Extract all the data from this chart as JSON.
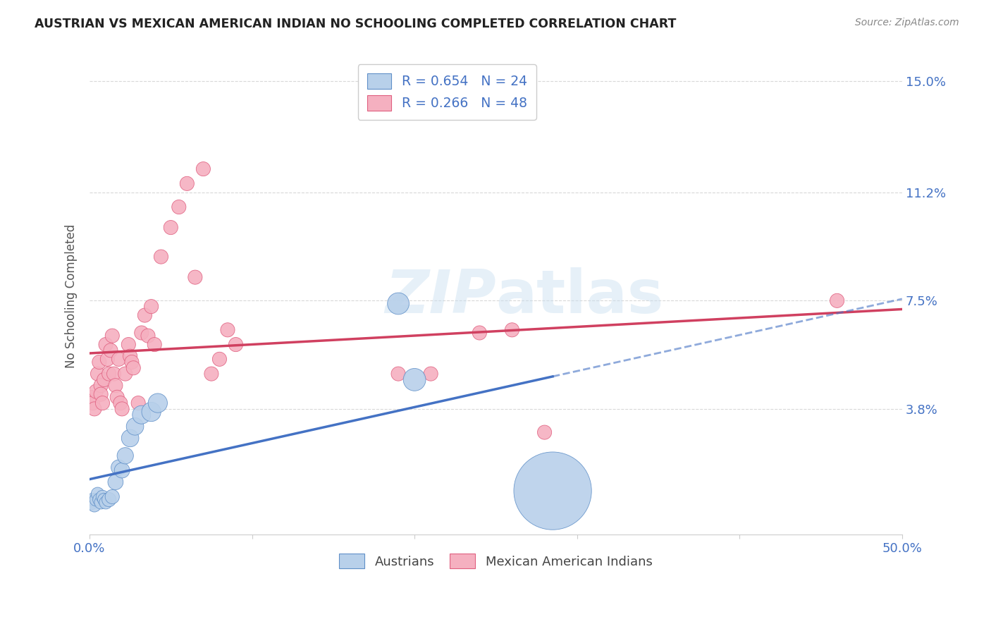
{
  "title": "AUSTRIAN VS MEXICAN AMERICAN INDIAN NO SCHOOLING COMPLETED CORRELATION CHART",
  "source": "Source: ZipAtlas.com",
  "ylabel": "No Schooling Completed",
  "xlim": [
    0.0,
    0.5
  ],
  "ylim": [
    -0.005,
    0.158
  ],
  "yticks": [
    0.038,
    0.075,
    0.112,
    0.15
  ],
  "ytick_labels": [
    "3.8%",
    "7.5%",
    "11.2%",
    "15.0%"
  ],
  "xticks": [
    0.0,
    0.1,
    0.2,
    0.3,
    0.4,
    0.5
  ],
  "xtick_labels": [
    "0.0%",
    "",
    "",
    "",
    "",
    "50.0%"
  ],
  "background_color": "#ffffff",
  "grid_color": "#d8d8d8",
  "austrians_color": "#b8d0ea",
  "mexicans_color": "#f5b0c0",
  "austrians_edge_color": "#6090c8",
  "mexicans_edge_color": "#e06080",
  "austrians_line_color": "#4472c4",
  "mexicans_line_color": "#d04060",
  "label_color": "#4472c4",
  "legend_R_austrians": "R = 0.654",
  "legend_N_austrians": "N = 24",
  "legend_R_mexicans": "R = 0.266",
  "legend_N_mexicans": "N = 48",
  "austrians_x": [
    0.001,
    0.002,
    0.003,
    0.004,
    0.005,
    0.006,
    0.007,
    0.008,
    0.009,
    0.01,
    0.012,
    0.014,
    0.016,
    0.018,
    0.02,
    0.022,
    0.025,
    0.028,
    0.032,
    0.038,
    0.042,
    0.19,
    0.2,
    0.285
  ],
  "austrians_y": [
    0.006,
    0.007,
    0.005,
    0.007,
    0.009,
    0.007,
    0.006,
    0.008,
    0.007,
    0.006,
    0.007,
    0.008,
    0.013,
    0.018,
    0.017,
    0.022,
    0.028,
    0.032,
    0.036,
    0.037,
    0.04,
    0.074,
    0.048,
    0.01
  ],
  "austrians_sizes": [
    30,
    25,
    25,
    25,
    25,
    25,
    25,
    25,
    25,
    25,
    30,
    30,
    35,
    35,
    35,
    40,
    45,
    45,
    50,
    55,
    55,
    70,
    75,
    900
  ],
  "mexicans_x": [
    0.001,
    0.002,
    0.003,
    0.004,
    0.005,
    0.006,
    0.007,
    0.007,
    0.008,
    0.009,
    0.01,
    0.011,
    0.012,
    0.013,
    0.014,
    0.015,
    0.016,
    0.017,
    0.018,
    0.019,
    0.02,
    0.022,
    0.024,
    0.025,
    0.026,
    0.027,
    0.03,
    0.032,
    0.034,
    0.036,
    0.038,
    0.04,
    0.044,
    0.05,
    0.055,
    0.06,
    0.065,
    0.07,
    0.075,
    0.08,
    0.085,
    0.09,
    0.19,
    0.21,
    0.24,
    0.26,
    0.28,
    0.46
  ],
  "mexicans_y": [
    0.042,
    0.04,
    0.038,
    0.044,
    0.05,
    0.054,
    0.046,
    0.043,
    0.04,
    0.048,
    0.06,
    0.055,
    0.05,
    0.058,
    0.063,
    0.05,
    0.046,
    0.042,
    0.055,
    0.04,
    0.038,
    0.05,
    0.06,
    0.056,
    0.054,
    0.052,
    0.04,
    0.064,
    0.07,
    0.063,
    0.073,
    0.06,
    0.09,
    0.1,
    0.107,
    0.115,
    0.083,
    0.12,
    0.05,
    0.055,
    0.065,
    0.06,
    0.05,
    0.05,
    0.064,
    0.065,
    0.03,
    0.075
  ],
  "mexicans_sizes": [
    30,
    30,
    30,
    30,
    30,
    30,
    30,
    30,
    30,
    30,
    30,
    30,
    30,
    30,
    30,
    30,
    30,
    30,
    30,
    30,
    30,
    30,
    30,
    30,
    30,
    30,
    30,
    30,
    30,
    30,
    30,
    30,
    30,
    30,
    30,
    30,
    30,
    30,
    30,
    30,
    30,
    30,
    30,
    30,
    30,
    30,
    30,
    30
  ]
}
